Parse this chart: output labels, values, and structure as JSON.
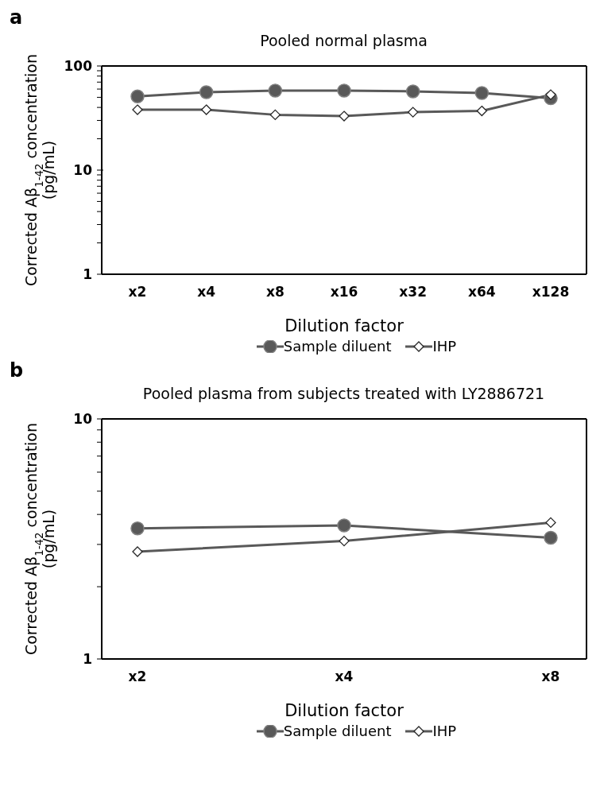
{
  "chart_data": [
    {
      "type": "line",
      "title": "Pooled normal plasma",
      "annotations": [
        "a"
      ],
      "xlabel": "Dilution factor",
      "ylabel": "Corrected Aβ$_{1-42}$ concentration (pg/mL)",
      "categories": [
        "x2",
        "x4",
        "x8",
        "x16",
        "x32",
        "x64",
        "x128"
      ],
      "series": [
        {
          "name": "Sample diluent",
          "color": "#595959",
          "marker": "circle",
          "values": [
            51,
            56,
            58,
            58,
            57,
            55,
            49
          ]
        },
        {
          "name": "IHP",
          "color": "#595959",
          "marker": "diamond",
          "values": [
            38,
            38,
            34,
            33,
            36,
            37,
            53
          ]
        }
      ],
      "log": true,
      "ylim": [
        1,
        100
      ],
      "yticks": [
        1,
        {
          "value": 2,
          "label": null
        },
        {
          "value": 3,
          "label": null
        },
        {
          "value": 4,
          "label": null
        },
        {
          "value": 5,
          "label": null
        },
        {
          "value": 6,
          "label": null
        },
        {
          "value": 7,
          "label": null
        },
        {
          "value": 8,
          "label": null
        },
        {
          "value": 9,
          "label": null
        },
        10,
        {
          "value": 20,
          "label": null
        },
        {
          "value": 30,
          "label": null
        },
        {
          "value": 40,
          "label": null
        },
        {
          "value": 50,
          "label": null
        },
        {
          "value": 60,
          "label": null
        },
        {
          "value": 70,
          "label": null
        },
        {
          "value": 80,
          "label": null
        },
        {
          "value": 90,
          "label": null
        },
        100
      ],
      "grid": false,
      "legend": "bottom"
    },
    {
      "type": "line",
      "title": "Pooled plasma from subjects treated with LY2886721",
      "annotations": [
        "b"
      ],
      "xlabel": "Dilution factor",
      "ylabel": "Corrected Aβ$_{1-42}$ concentration (pg/mL)",
      "categories": [
        "x2",
        "x4",
        "x8"
      ],
      "series": [
        {
          "name": "Sample diluent",
          "color": "#595959",
          "marker": "circle",
          "values": [
            3.5,
            3.6,
            3.2
          ]
        },
        {
          "name": "IHP",
          "color": "#595959",
          "marker": "diamond",
          "values": [
            2.8,
            3.1,
            3.7
          ]
        }
      ],
      "log": true,
      "ylim": [
        1,
        10
      ],
      "yticks": [
        1,
        {
          "value": 2,
          "label": null
        },
        {
          "value": 3,
          "label": null
        },
        {
          "value": 4,
          "label": null
        },
        {
          "value": 5,
          "label": null
        },
        {
          "value": 6,
          "label": null
        },
        {
          "value": 7,
          "label": null
        },
        {
          "value": 8,
          "label": null
        },
        {
          "value": 9,
          "label": null
        },
        10
      ],
      "grid": false,
      "legend": "bottom"
    }
  ]
}
